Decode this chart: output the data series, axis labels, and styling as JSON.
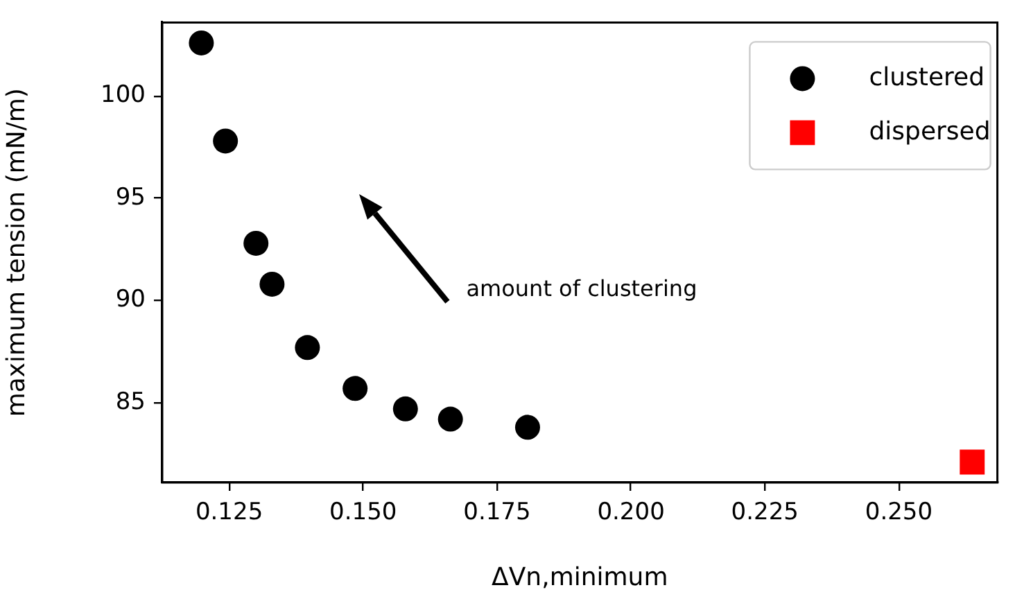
{
  "chart_data": {
    "type": "scatter",
    "xlabel": "ΔVn,minimum",
    "ylabel": "maximum tension (mN/m)",
    "annotations": [
      "amount of clustering"
    ],
    "series": [
      {
        "name": "clustered",
        "color": "#000000",
        "marker": "circle",
        "x": [
          0.1198,
          0.1243,
          0.13,
          0.133,
          0.1396,
          0.1485,
          0.1579,
          0.1663,
          0.1807
        ],
        "values": [
          102.6,
          97.8,
          92.8,
          90.8,
          87.7,
          85.7,
          84.7,
          84.2,
          83.8
        ]
      },
      {
        "name": "dispersed",
        "color": "#ff0000",
        "marker": "square",
        "x": [
          0.2637
        ],
        "values": [
          82.1
        ]
      }
    ],
    "xlim": [
      0.1125,
      0.2684
    ],
    "ylim": [
      81.1,
      103.6
    ],
    "xticks": [
      0.125,
      {
        "value": 0.15,
        "label": "0.150"
      },
      0.175,
      {
        "value": 0.2,
        "label": "0.200"
      },
      0.225,
      {
        "value": 0.25,
        "label": "0.250"
      }
    ],
    "yticks": [
      85,
      90,
      95,
      100
    ],
    "grid": false,
    "legend": "top right"
  }
}
